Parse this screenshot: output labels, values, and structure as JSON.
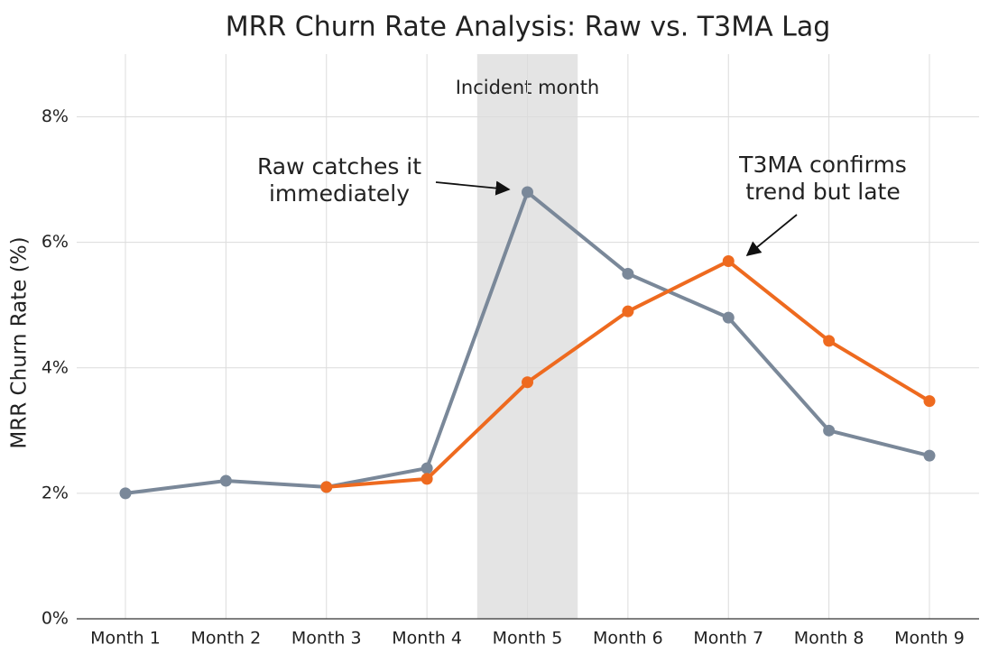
{
  "chart_data": {
    "type": "line",
    "title": "MRR Churn Rate Analysis: Raw vs. T3MA Lag",
    "y_label": "MRR Churn Rate (%)",
    "categories": [
      "Month 1",
      "Month 2",
      "Month 3",
      "Month 4",
      "Month 5",
      "Month 6",
      "Month 7",
      "Month 8",
      "Month 9"
    ],
    "series": [
      {
        "color": "#7a8899",
        "values": [
          2.0,
          2.2,
          2.1,
          2.4,
          6.8,
          5.5,
          4.8,
          3.0,
          2.6
        ]
      },
      {
        "color": "#ee6a1f",
        "values": [
          null,
          null,
          2.1,
          2.23,
          3.77,
          4.9,
          5.7,
          4.43,
          3.47
        ]
      }
    ],
    "ylim": [
      0,
      9
    ],
    "yticks": [
      {
        "value": 0,
        "label": "0%"
      },
      {
        "value": 2,
        "label": "2%"
      },
      {
        "value": 4,
        "label": "4%"
      },
      {
        "value": 6,
        "label": "6%"
      },
      {
        "value": 8,
        "label": "8%"
      }
    ],
    "grid": true,
    "shaded_region": {
      "category": "Month 5",
      "label": "Incident month"
    },
    "annotations": [
      {
        "lines": [
          "Raw catches it",
          "immediately"
        ]
      },
      {
        "lines": [
          "T3MA confirms",
          "trend but late"
        ]
      }
    ]
  }
}
